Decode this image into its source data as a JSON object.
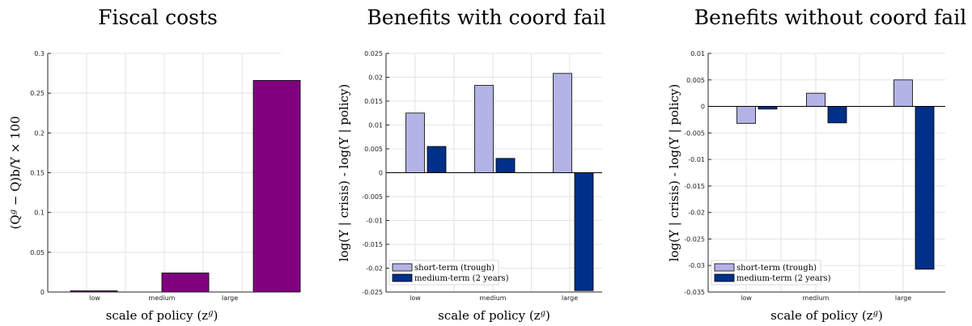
{
  "chart_data": [
    {
      "type": "bar",
      "title": "Fiscal costs",
      "xlabel": "scale of policy (z^g)",
      "ylabel": "(Q^g − Q)b/Y × 100",
      "categories": [
        "low",
        "medium",
        "large"
      ],
      "ylim": [
        0,
        0.3
      ],
      "yticks": [
        "0",
        "0.05",
        "0.1",
        "0.15",
        "0.2",
        "0.25",
        "0.3"
      ],
      "grid": true,
      "series": [
        {
          "values": [
            0.0015,
            0.024,
            0.266
          ],
          "color": "#800080"
        }
      ]
    },
    {
      "type": "bar",
      "title": "Benefits with coord fail",
      "xlabel": "scale of policy (z^g)",
      "ylabel": "log(Y | crisis) - log(Y | policy)",
      "categories": [
        "low",
        "medium",
        "large"
      ],
      "ylim": [
        -0.025,
        0.025
      ],
      "yticks": [
        "-0.025",
        "-0.02",
        "-0.015",
        "-0.01",
        "-0.005",
        "0",
        "0.005",
        "0.01",
        "0.015",
        "0.02",
        "0.025"
      ],
      "grid": true,
      "legend_position": "bottom-left",
      "series": [
        {
          "name": "short-term (trough)",
          "values": [
            0.0125,
            0.0183,
            0.0208
          ],
          "color": "#b3b3e6"
        },
        {
          "name": "medium-term (2 years)",
          "values": [
            0.0055,
            0.003,
            -0.0247
          ],
          "color": "#003087"
        }
      ]
    },
    {
      "type": "bar",
      "title": "Benefits without coord fail",
      "xlabel": "scale of policy (z^g)",
      "ylabel": "log(Y | crisis) - log(Y | policy)",
      "categories": [
        "low",
        "medium",
        "large"
      ],
      "ylim": [
        -0.035,
        0.01
      ],
      "yticks": [
        "-0.035",
        "-0.03",
        "-0.025",
        "-0.02",
        "-0.015",
        "-0.01",
        "-0.005",
        "0",
        "0.005",
        "0.01"
      ],
      "grid": true,
      "legend_position": "bottom-left",
      "series": [
        {
          "name": "short-term (trough)",
          "values": [
            -0.0032,
            0.0025,
            0.005
          ],
          "color": "#b3b3e6"
        },
        {
          "name": "medium-term (2 years)",
          "values": [
            -0.0005,
            -0.0031,
            -0.0307
          ],
          "color": "#003087"
        }
      ]
    }
  ]
}
